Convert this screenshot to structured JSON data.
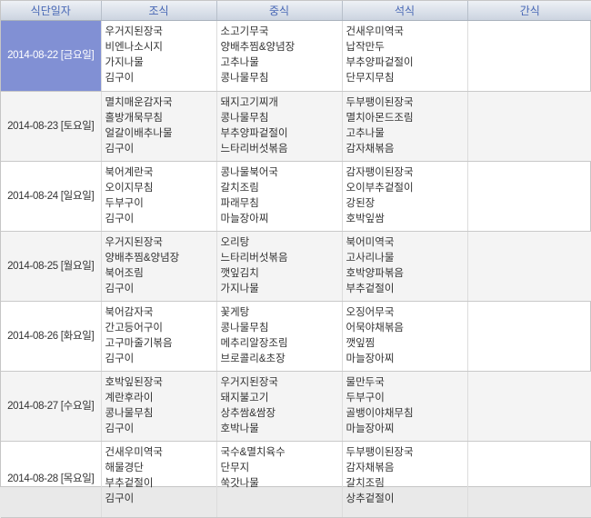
{
  "table": {
    "columns": [
      "식단일자",
      "조식",
      "중식",
      "석식",
      "간식"
    ],
    "selected_date": "2014-08-22 [금요일]",
    "colors": {
      "header_text": "#4767b5",
      "header_bg": "#dbe1ea",
      "selected_cell_bg": "#8190d4",
      "stripe_bg": "#f4f4f4",
      "body_text": "#333333"
    },
    "rows": [
      {
        "date": "2014-08-22 [금요일]",
        "selected": true,
        "striped": false,
        "breakfast": [
          "우거지된장국",
          "비엔나소시지",
          "가지나물",
          "김구이"
        ],
        "lunch": [
          "소고기무국",
          "양배추찜&양념장",
          "고추나물",
          "콩나물무침"
        ],
        "dinner": [
          "건새우미역국",
          "납작만두",
          "부추양파겉절이",
          "단무지무침"
        ],
        "snack": []
      },
      {
        "date": "2014-08-23 [토요일]",
        "selected": false,
        "striped": true,
        "breakfast": [
          "멸치매운감자국",
          "홀방개묵무침",
          "얼갈이배추나물",
          "김구이"
        ],
        "lunch": [
          "돼지고기찌개",
          "콩나물무침",
          "부추양파겉절이",
          "느타리버섯볶음"
        ],
        "dinner": [
          "두부팽이된장국",
          "멸치아몬드조림",
          "고추나물",
          "감자채볶음"
        ],
        "snack": []
      },
      {
        "date": "2014-08-24 [일요일]",
        "selected": false,
        "striped": false,
        "breakfast": [
          "북어계란국",
          "오이지무침",
          "두부구이",
          "김구이"
        ],
        "lunch": [
          "콩나물북어국",
          "갈치조림",
          "파래무침",
          "마늘장아찌"
        ],
        "dinner": [
          "감자팽이된장국",
          "오이부추겉절이",
          "강된장",
          "호박잎쌈"
        ],
        "snack": []
      },
      {
        "date": "2014-08-25 [월요일]",
        "selected": false,
        "striped": true,
        "breakfast": [
          "우거지된장국",
          "양배추찜&양념장",
          "북어조림",
          "김구이"
        ],
        "lunch": [
          "오리탕",
          "느타리버섯볶음",
          "깻잎김치",
          "가지나물"
        ],
        "dinner": [
          "북어미역국",
          "고사리나물",
          "호박양파볶음",
          "부추겉절이"
        ],
        "snack": []
      },
      {
        "date": "2014-08-26 [화요일]",
        "selected": false,
        "striped": false,
        "breakfast": [
          "북어감자국",
          "간고등어구이",
          "고구마줄기볶음",
          "김구이"
        ],
        "lunch": [
          "꽃게탕",
          "콩나물무침",
          "메추리알장조림",
          "브로콜리&초장"
        ],
        "dinner": [
          "오징어무국",
          "어묵야채볶음",
          "깻잎찜",
          "마늘장아찌"
        ],
        "snack": []
      },
      {
        "date": "2014-08-27 [수요일]",
        "selected": false,
        "striped": true,
        "breakfast": [
          "호박잎된장국",
          "계란후라이",
          "콩나물무침",
          "김구이"
        ],
        "lunch": [
          "우거지된장국",
          "돼지불고기",
          "상추쌈&쌈장",
          "호박나물"
        ],
        "dinner": [
          "물만두국",
          "두부구이",
          "골뱅이야채무침",
          "마늘장아찌"
        ],
        "snack": []
      },
      {
        "date": "2014-08-28 [목요일]",
        "selected": false,
        "striped": false,
        "breakfast": [
          "건새우미역국",
          "해물경단",
          "부추겉절이",
          "김구이"
        ],
        "lunch": [
          "국수&멸치육수",
          "단무지",
          "쑥갓나물"
        ],
        "dinner": [
          "두부팽이된장국",
          "감자채볶음",
          "갈치조림",
          "상추겉절이"
        ],
        "snack": []
      }
    ]
  }
}
